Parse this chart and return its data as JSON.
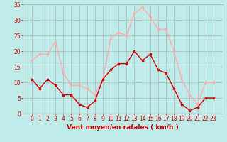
{
  "hours": [
    0,
    1,
    2,
    3,
    4,
    5,
    6,
    7,
    8,
    9,
    10,
    11,
    12,
    13,
    14,
    15,
    16,
    17,
    18,
    19,
    20,
    21,
    22,
    23
  ],
  "wind_avg": [
    11,
    8,
    11,
    9,
    6,
    6,
    3,
    2,
    4,
    11,
    14,
    16,
    16,
    20,
    17,
    19,
    14,
    13,
    8,
    3,
    1,
    2,
    5,
    5
  ],
  "wind_gust": [
    17,
    19,
    19,
    23,
    13,
    9,
    9,
    8,
    6,
    11,
    24,
    26,
    25,
    32,
    34,
    31,
    27,
    27,
    20,
    11,
    6,
    3,
    10,
    10
  ],
  "avg_color": "#cc0000",
  "gust_color": "#ffaaaa",
  "bg_color": "#beeae8",
  "grid_color": "#aaaaaa",
  "xlabel": "Vent moyen/en rafales ( km/h )",
  "xlabel_color": "#cc0000",
  "tick_color": "#cc0000",
  "ylim": [
    0,
    35
  ],
  "yticks": [
    0,
    5,
    10,
    15,
    20,
    25,
    30,
    35
  ],
  "marker_size": 2.0,
  "line_width": 1.0,
  "tick_fontsize": 5.5,
  "xlabel_fontsize": 6.5
}
